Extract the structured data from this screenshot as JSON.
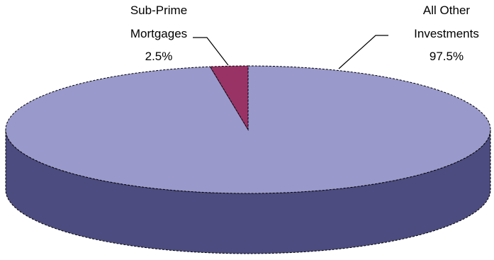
{
  "chart_data": {
    "type": "pie",
    "style": "3d",
    "title": "",
    "slices": [
      {
        "label": "All Other Investments",
        "label_lines": [
          "All Other",
          "Investments"
        ],
        "value": 97.5,
        "value_label": "97.5%",
        "color": "#9999cc",
        "side_color": "#4c4c80"
      },
      {
        "label": "Sub-Prime Mortgages",
        "label_lines": [
          "Sub-Prime",
          "Mortgages"
        ],
        "value": 2.5,
        "value_label": "2.5%",
        "color": "#993366",
        "side_color": "#4d1a33"
      }
    ],
    "legend": "none"
  }
}
